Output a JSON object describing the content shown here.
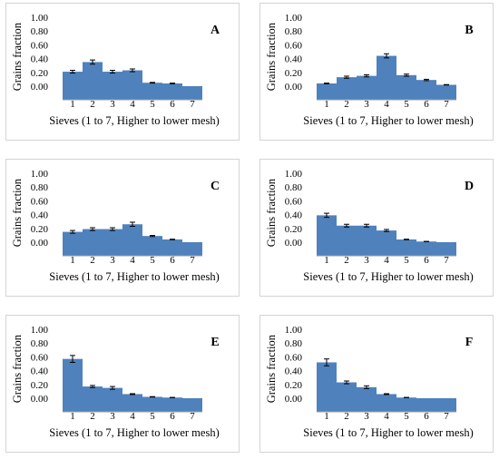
{
  "chart_data": [
    {
      "type": "bar",
      "panel_label": "A",
      "categories": [
        "1",
        "2",
        "3",
        "4",
        "5",
        "6",
        "7"
      ],
      "yticks": [
        "1.00",
        "0.80",
        "0.60",
        "0.40",
        "0.20",
        "0.00"
      ],
      "ylim": [
        -0.2,
        1.0
      ],
      "values": [
        0.21,
        0.35,
        0.21,
        0.23,
        0.05,
        0.04,
        0.0
      ],
      "errors": [
        0.02,
        0.03,
        0.02,
        0.02,
        0.005,
        0.005,
        0.0
      ],
      "ylabel": "Grains fraction",
      "xlabel": "Sieves (1 to 7, Higher to lower mesh)",
      "color": "#4f81bd"
    },
    {
      "type": "bar",
      "panel_label": "B",
      "categories": [
        "1",
        "2",
        "3",
        "4",
        "5",
        "6",
        "7"
      ],
      "yticks": [
        "1.00",
        "0.80",
        "0.60",
        "0.40",
        "0.20",
        "0.00"
      ],
      "ylim": [
        -0.2,
        1.0
      ],
      "values": [
        0.04,
        0.13,
        0.15,
        0.44,
        0.16,
        0.09,
        0.02
      ],
      "errors": [
        0.005,
        0.015,
        0.015,
        0.03,
        0.015,
        0.01,
        0.003
      ],
      "ylabel": "Grains fraction",
      "xlabel": "Sieves (1 to 7, Higher to lower mesh)",
      "color": "#4f81bd"
    },
    {
      "type": "bar",
      "panel_label": "C",
      "categories": [
        "1",
        "2",
        "3",
        "4",
        "5",
        "6",
        "7"
      ],
      "yticks": [
        "1.00",
        "0.80",
        "0.60",
        "0.40",
        "0.20",
        "0.00"
      ],
      "ylim": [
        -0.2,
        1.0
      ],
      "values": [
        0.15,
        0.19,
        0.19,
        0.26,
        0.09,
        0.04,
        0.0
      ],
      "errors": [
        0.02,
        0.02,
        0.02,
        0.03,
        0.008,
        0.004,
        0.0
      ],
      "ylabel": "Grains fraction",
      "xlabel": "Sieves (1 to 7, Higher to lower mesh)",
      "color": "#4f81bd"
    },
    {
      "type": "bar",
      "panel_label": "D",
      "categories": [
        "1",
        "2",
        "3",
        "4",
        "5",
        "6",
        "7"
      ],
      "yticks": [
        "1.00",
        "0.80",
        "0.60",
        "0.40",
        "0.20",
        "0.00"
      ],
      "ylim": [
        -0.2,
        1.0
      ],
      "values": [
        0.39,
        0.24,
        0.24,
        0.17,
        0.04,
        0.01,
        0.0
      ],
      "errors": [
        0.03,
        0.02,
        0.02,
        0.015,
        0.004,
        0.002,
        0.0
      ],
      "ylabel": "Grains fraction",
      "xlabel": "Sieves (1 to 7, Higher to lower mesh)",
      "color": "#4f81bd"
    },
    {
      "type": "bar",
      "panel_label": "E",
      "categories": [
        "1",
        "2",
        "3",
        "4",
        "5",
        "6",
        "7"
      ],
      "yticks": [
        "1.00",
        "0.80",
        "0.60",
        "0.40",
        "0.20",
        "0.00"
      ],
      "ylim": [
        -0.2,
        1.0
      ],
      "values": [
        0.57,
        0.17,
        0.15,
        0.06,
        0.02,
        0.01,
        0.0
      ],
      "errors": [
        0.05,
        0.015,
        0.02,
        0.006,
        0.003,
        0.002,
        0.0
      ],
      "ylabel": "Grains fraction",
      "xlabel": "Sieves (1 to 7, Higher to lower mesh)",
      "color": "#4f81bd"
    },
    {
      "type": "bar",
      "panel_label": "F",
      "categories": [
        "1",
        "2",
        "3",
        "4",
        "5",
        "6",
        "7"
      ],
      "yticks": [
        "1.00",
        "0.80",
        "0.60",
        "0.40",
        "0.20",
        "0.00"
      ],
      "ylim": [
        -0.2,
        1.0
      ],
      "values": [
        0.52,
        0.23,
        0.16,
        0.06,
        0.01,
        0.0,
        0.0
      ],
      "errors": [
        0.05,
        0.02,
        0.02,
        0.006,
        0.002,
        0.0,
        0.0
      ],
      "ylabel": "Grains fraction",
      "xlabel": "Sieves (1 to 7, Higher to lower mesh)",
      "color": "#4f81bd"
    }
  ]
}
